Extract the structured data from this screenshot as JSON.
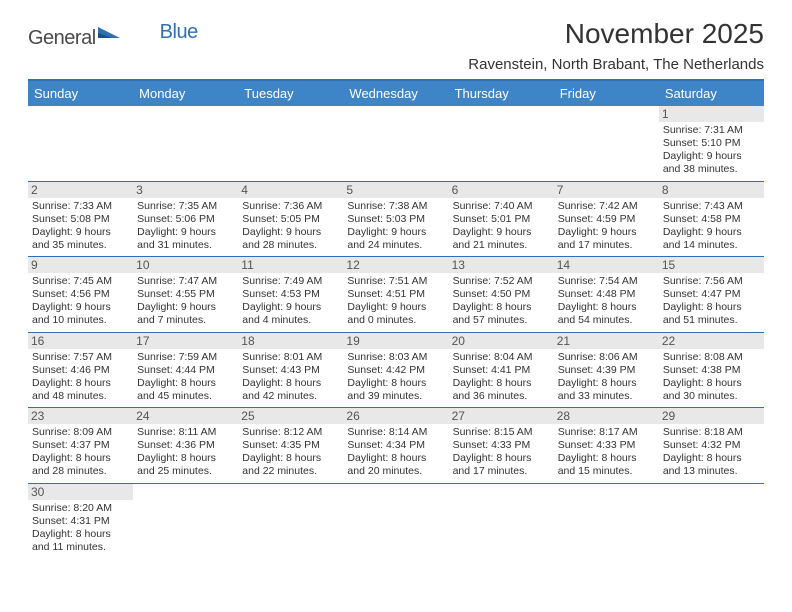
{
  "brand": {
    "part1": "General",
    "part2": "Blue"
  },
  "title": "November 2025",
  "location": "Ravenstein, North Brabant, The Netherlands",
  "colors": {
    "header_bg": "#3d85c6",
    "header_text": "#ffffff",
    "rule": "#2f6fb3",
    "daynum_bg": "#e8e8e8",
    "text": "#333333",
    "brand_gray": "#4a4a4a",
    "brand_blue": "#2f6fb3"
  },
  "weekdays": [
    "Sunday",
    "Monday",
    "Tuesday",
    "Wednesday",
    "Thursday",
    "Friday",
    "Saturday"
  ],
  "weeks": [
    [
      {
        "day": "",
        "sunrise": "",
        "sunset": "",
        "daylight": ""
      },
      {
        "day": "",
        "sunrise": "",
        "sunset": "",
        "daylight": ""
      },
      {
        "day": "",
        "sunrise": "",
        "sunset": "",
        "daylight": ""
      },
      {
        "day": "",
        "sunrise": "",
        "sunset": "",
        "daylight": ""
      },
      {
        "day": "",
        "sunrise": "",
        "sunset": "",
        "daylight": ""
      },
      {
        "day": "",
        "sunrise": "",
        "sunset": "",
        "daylight": ""
      },
      {
        "day": "1",
        "sunrise": "Sunrise: 7:31 AM",
        "sunset": "Sunset: 5:10 PM",
        "daylight": "Daylight: 9 hours and 38 minutes."
      }
    ],
    [
      {
        "day": "2",
        "sunrise": "Sunrise: 7:33 AM",
        "sunset": "Sunset: 5:08 PM",
        "daylight": "Daylight: 9 hours and 35 minutes."
      },
      {
        "day": "3",
        "sunrise": "Sunrise: 7:35 AM",
        "sunset": "Sunset: 5:06 PM",
        "daylight": "Daylight: 9 hours and 31 minutes."
      },
      {
        "day": "4",
        "sunrise": "Sunrise: 7:36 AM",
        "sunset": "Sunset: 5:05 PM",
        "daylight": "Daylight: 9 hours and 28 minutes."
      },
      {
        "day": "5",
        "sunrise": "Sunrise: 7:38 AM",
        "sunset": "Sunset: 5:03 PM",
        "daylight": "Daylight: 9 hours and 24 minutes."
      },
      {
        "day": "6",
        "sunrise": "Sunrise: 7:40 AM",
        "sunset": "Sunset: 5:01 PM",
        "daylight": "Daylight: 9 hours and 21 minutes."
      },
      {
        "day": "7",
        "sunrise": "Sunrise: 7:42 AM",
        "sunset": "Sunset: 4:59 PM",
        "daylight": "Daylight: 9 hours and 17 minutes."
      },
      {
        "day": "8",
        "sunrise": "Sunrise: 7:43 AM",
        "sunset": "Sunset: 4:58 PM",
        "daylight": "Daylight: 9 hours and 14 minutes."
      }
    ],
    [
      {
        "day": "9",
        "sunrise": "Sunrise: 7:45 AM",
        "sunset": "Sunset: 4:56 PM",
        "daylight": "Daylight: 9 hours and 10 minutes."
      },
      {
        "day": "10",
        "sunrise": "Sunrise: 7:47 AM",
        "sunset": "Sunset: 4:55 PM",
        "daylight": "Daylight: 9 hours and 7 minutes."
      },
      {
        "day": "11",
        "sunrise": "Sunrise: 7:49 AM",
        "sunset": "Sunset: 4:53 PM",
        "daylight": "Daylight: 9 hours and 4 minutes."
      },
      {
        "day": "12",
        "sunrise": "Sunrise: 7:51 AM",
        "sunset": "Sunset: 4:51 PM",
        "daylight": "Daylight: 9 hours and 0 minutes."
      },
      {
        "day": "13",
        "sunrise": "Sunrise: 7:52 AM",
        "sunset": "Sunset: 4:50 PM",
        "daylight": "Daylight: 8 hours and 57 minutes."
      },
      {
        "day": "14",
        "sunrise": "Sunrise: 7:54 AM",
        "sunset": "Sunset: 4:48 PM",
        "daylight": "Daylight: 8 hours and 54 minutes."
      },
      {
        "day": "15",
        "sunrise": "Sunrise: 7:56 AM",
        "sunset": "Sunset: 4:47 PM",
        "daylight": "Daylight: 8 hours and 51 minutes."
      }
    ],
    [
      {
        "day": "16",
        "sunrise": "Sunrise: 7:57 AM",
        "sunset": "Sunset: 4:46 PM",
        "daylight": "Daylight: 8 hours and 48 minutes."
      },
      {
        "day": "17",
        "sunrise": "Sunrise: 7:59 AM",
        "sunset": "Sunset: 4:44 PM",
        "daylight": "Daylight: 8 hours and 45 minutes."
      },
      {
        "day": "18",
        "sunrise": "Sunrise: 8:01 AM",
        "sunset": "Sunset: 4:43 PM",
        "daylight": "Daylight: 8 hours and 42 minutes."
      },
      {
        "day": "19",
        "sunrise": "Sunrise: 8:03 AM",
        "sunset": "Sunset: 4:42 PM",
        "daylight": "Daylight: 8 hours and 39 minutes."
      },
      {
        "day": "20",
        "sunrise": "Sunrise: 8:04 AM",
        "sunset": "Sunset: 4:41 PM",
        "daylight": "Daylight: 8 hours and 36 minutes."
      },
      {
        "day": "21",
        "sunrise": "Sunrise: 8:06 AM",
        "sunset": "Sunset: 4:39 PM",
        "daylight": "Daylight: 8 hours and 33 minutes."
      },
      {
        "day": "22",
        "sunrise": "Sunrise: 8:08 AM",
        "sunset": "Sunset: 4:38 PM",
        "daylight": "Daylight: 8 hours and 30 minutes."
      }
    ],
    [
      {
        "day": "23",
        "sunrise": "Sunrise: 8:09 AM",
        "sunset": "Sunset: 4:37 PM",
        "daylight": "Daylight: 8 hours and 28 minutes."
      },
      {
        "day": "24",
        "sunrise": "Sunrise: 8:11 AM",
        "sunset": "Sunset: 4:36 PM",
        "daylight": "Daylight: 8 hours and 25 minutes."
      },
      {
        "day": "25",
        "sunrise": "Sunrise: 8:12 AM",
        "sunset": "Sunset: 4:35 PM",
        "daylight": "Daylight: 8 hours and 22 minutes."
      },
      {
        "day": "26",
        "sunrise": "Sunrise: 8:14 AM",
        "sunset": "Sunset: 4:34 PM",
        "daylight": "Daylight: 8 hours and 20 minutes."
      },
      {
        "day": "27",
        "sunrise": "Sunrise: 8:15 AM",
        "sunset": "Sunset: 4:33 PM",
        "daylight": "Daylight: 8 hours and 17 minutes."
      },
      {
        "day": "28",
        "sunrise": "Sunrise: 8:17 AM",
        "sunset": "Sunset: 4:33 PM",
        "daylight": "Daylight: 8 hours and 15 minutes."
      },
      {
        "day": "29",
        "sunrise": "Sunrise: 8:18 AM",
        "sunset": "Sunset: 4:32 PM",
        "daylight": "Daylight: 8 hours and 13 minutes."
      }
    ],
    [
      {
        "day": "30",
        "sunrise": "Sunrise: 8:20 AM",
        "sunset": "Sunset: 4:31 PM",
        "daylight": "Daylight: 8 hours and 11 minutes."
      },
      {
        "day": "",
        "sunrise": "",
        "sunset": "",
        "daylight": ""
      },
      {
        "day": "",
        "sunrise": "",
        "sunset": "",
        "daylight": ""
      },
      {
        "day": "",
        "sunrise": "",
        "sunset": "",
        "daylight": ""
      },
      {
        "day": "",
        "sunrise": "",
        "sunset": "",
        "daylight": ""
      },
      {
        "day": "",
        "sunrise": "",
        "sunset": "",
        "daylight": ""
      },
      {
        "day": "",
        "sunrise": "",
        "sunset": "",
        "daylight": ""
      }
    ]
  ]
}
